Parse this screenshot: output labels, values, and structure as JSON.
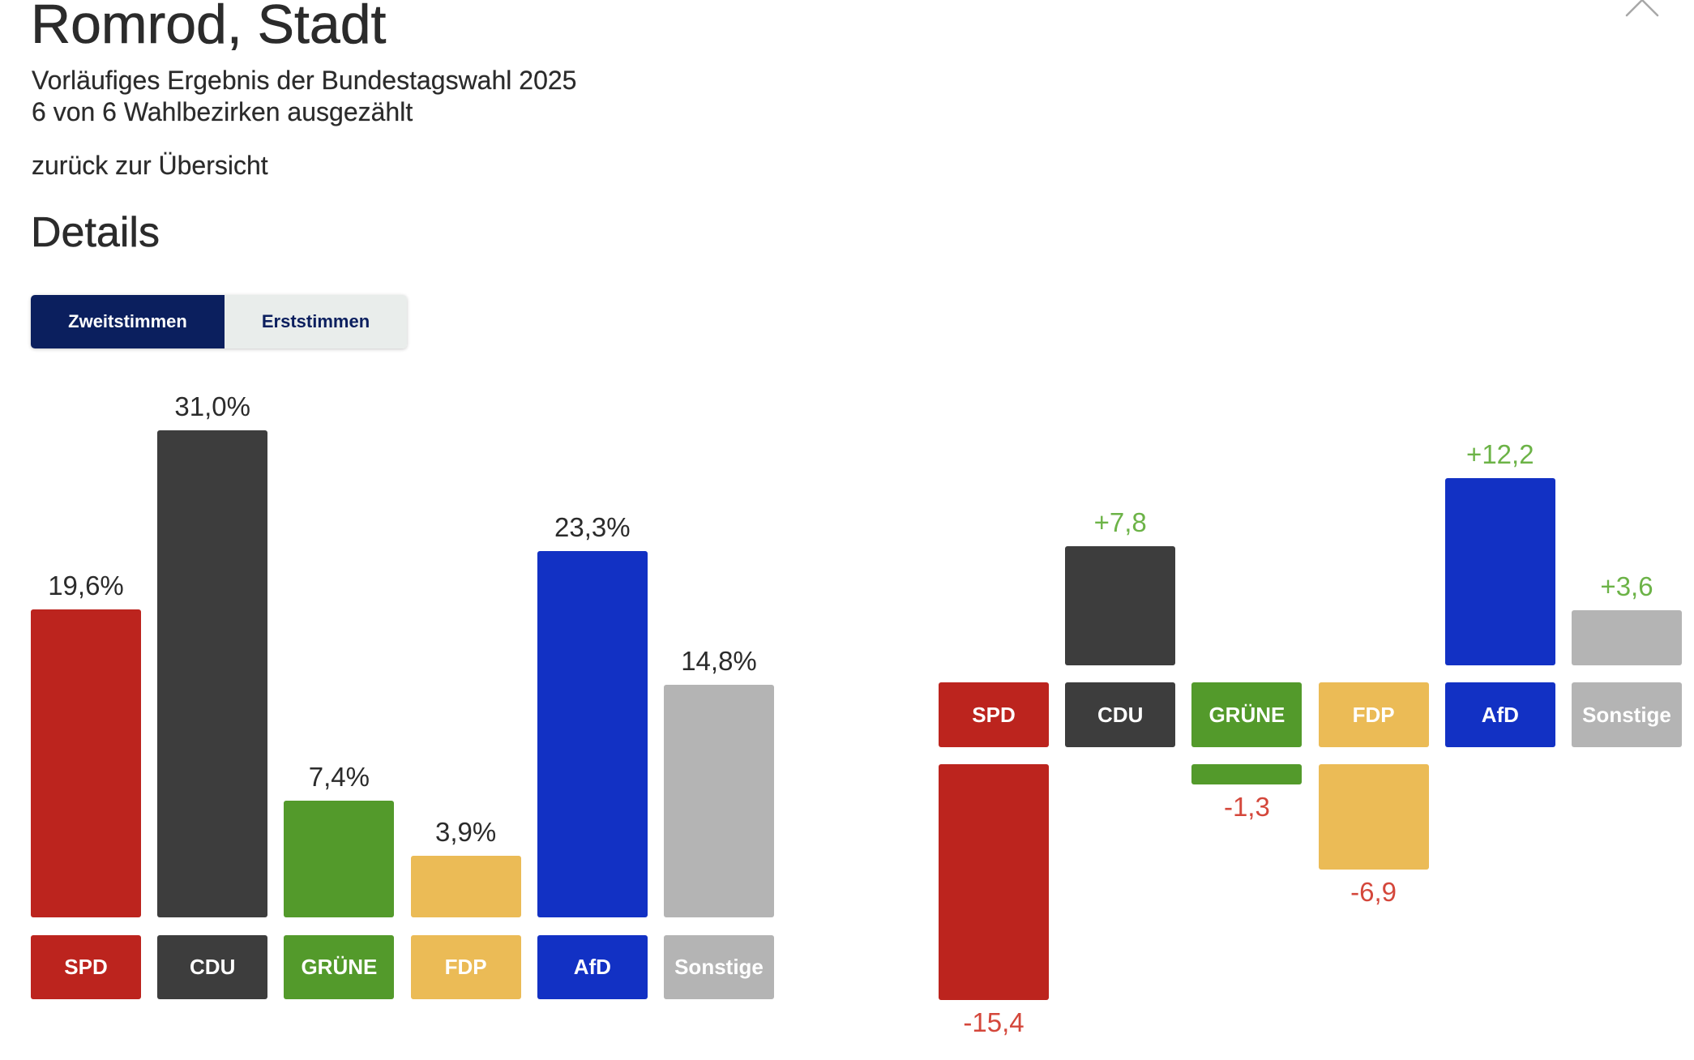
{
  "window": {
    "close_icon": "close-icon"
  },
  "header": {
    "title": "Romrod, Stadt",
    "subtitle_lines": [
      "Vorläufiges Ergebnis der Bundestagswahl 2025",
      "6 von 6 Wahlbezirken ausgezählt"
    ],
    "back_link": "zurück zur Übersicht"
  },
  "details": {
    "heading": "Details",
    "tabs": [
      {
        "label": "Zweitstimmen",
        "active": true
      },
      {
        "label": "Erststimmen",
        "active": false
      }
    ],
    "colors": {
      "active_tab": "#0b1f5e",
      "inactive_tab": "#e9edeb"
    }
  },
  "chart_data": [
    {
      "type": "bar",
      "categories": [
        "SPD",
        "CDU",
        "GRÜNE",
        "FDP",
        "AfD",
        "Sonstige"
      ],
      "values": [
        19.6,
        31.0,
        7.4,
        3.9,
        23.3,
        14.8
      ],
      "value_labels": [
        "19,6%",
        "31,0%",
        "7,4%",
        "3,9%",
        "23,3%",
        "14,8%"
      ],
      "colors": [
        "#bc241e",
        "#3d3d3d",
        "#539a2b",
        "#ebbb56",
        "#1231c4",
        "#b4b4b4"
      ],
      "value_label_color": "#2b2b2b",
      "grid": false
    },
    {
      "type": "bar",
      "categories": [
        "SPD",
        "CDU",
        "GRÜNE",
        "FDP",
        "AfD",
        "Sonstige"
      ],
      "values": [
        -15.4,
        7.8,
        -1.3,
        -6.9,
        12.2,
        3.6
      ],
      "value_labels": [
        "-15,4",
        "+7,8",
        "-1,3",
        "-6,9",
        "+12,2",
        "+3,6"
      ],
      "colors": [
        "#bc241e",
        "#3d3d3d",
        "#539a2b",
        "#ebbb56",
        "#1231c4",
        "#b4b4b4"
      ],
      "positive_label_color": "#6cb347",
      "negative_label_color": "#d4473b",
      "grid": false
    }
  ]
}
